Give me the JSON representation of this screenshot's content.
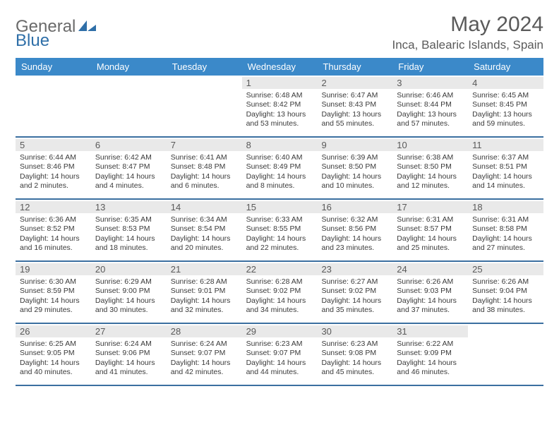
{
  "brand": {
    "word1": "General",
    "word2": "Blue"
  },
  "title": "May 2024",
  "location": "Inca, Balearic Islands, Spain",
  "colors": {
    "header_bg": "#3b89c9",
    "header_text": "#ffffff",
    "daynum_bg": "#e9e9e9",
    "week_divider": "#3b6fa0",
    "body_text": "#3a3a3a",
    "title_text": "#5a5a5a"
  },
  "day_names": [
    "Sunday",
    "Monday",
    "Tuesday",
    "Wednesday",
    "Thursday",
    "Friday",
    "Saturday"
  ],
  "weeks": [
    [
      {
        "n": "",
        "sr": "",
        "ss": "",
        "dl1": "",
        "dl2": ""
      },
      {
        "n": "",
        "sr": "",
        "ss": "",
        "dl1": "",
        "dl2": ""
      },
      {
        "n": "",
        "sr": "",
        "ss": "",
        "dl1": "",
        "dl2": ""
      },
      {
        "n": "1",
        "sr": "Sunrise: 6:48 AM",
        "ss": "Sunset: 8:42 PM",
        "dl1": "Daylight: 13 hours",
        "dl2": "and 53 minutes."
      },
      {
        "n": "2",
        "sr": "Sunrise: 6:47 AM",
        "ss": "Sunset: 8:43 PM",
        "dl1": "Daylight: 13 hours",
        "dl2": "and 55 minutes."
      },
      {
        "n": "3",
        "sr": "Sunrise: 6:46 AM",
        "ss": "Sunset: 8:44 PM",
        "dl1": "Daylight: 13 hours",
        "dl2": "and 57 minutes."
      },
      {
        "n": "4",
        "sr": "Sunrise: 6:45 AM",
        "ss": "Sunset: 8:45 PM",
        "dl1": "Daylight: 13 hours",
        "dl2": "and 59 minutes."
      }
    ],
    [
      {
        "n": "5",
        "sr": "Sunrise: 6:44 AM",
        "ss": "Sunset: 8:46 PM",
        "dl1": "Daylight: 14 hours",
        "dl2": "and 2 minutes."
      },
      {
        "n": "6",
        "sr": "Sunrise: 6:42 AM",
        "ss": "Sunset: 8:47 PM",
        "dl1": "Daylight: 14 hours",
        "dl2": "and 4 minutes."
      },
      {
        "n": "7",
        "sr": "Sunrise: 6:41 AM",
        "ss": "Sunset: 8:48 PM",
        "dl1": "Daylight: 14 hours",
        "dl2": "and 6 minutes."
      },
      {
        "n": "8",
        "sr": "Sunrise: 6:40 AM",
        "ss": "Sunset: 8:49 PM",
        "dl1": "Daylight: 14 hours",
        "dl2": "and 8 minutes."
      },
      {
        "n": "9",
        "sr": "Sunrise: 6:39 AM",
        "ss": "Sunset: 8:50 PM",
        "dl1": "Daylight: 14 hours",
        "dl2": "and 10 minutes."
      },
      {
        "n": "10",
        "sr": "Sunrise: 6:38 AM",
        "ss": "Sunset: 8:50 PM",
        "dl1": "Daylight: 14 hours",
        "dl2": "and 12 minutes."
      },
      {
        "n": "11",
        "sr": "Sunrise: 6:37 AM",
        "ss": "Sunset: 8:51 PM",
        "dl1": "Daylight: 14 hours",
        "dl2": "and 14 minutes."
      }
    ],
    [
      {
        "n": "12",
        "sr": "Sunrise: 6:36 AM",
        "ss": "Sunset: 8:52 PM",
        "dl1": "Daylight: 14 hours",
        "dl2": "and 16 minutes."
      },
      {
        "n": "13",
        "sr": "Sunrise: 6:35 AM",
        "ss": "Sunset: 8:53 PM",
        "dl1": "Daylight: 14 hours",
        "dl2": "and 18 minutes."
      },
      {
        "n": "14",
        "sr": "Sunrise: 6:34 AM",
        "ss": "Sunset: 8:54 PM",
        "dl1": "Daylight: 14 hours",
        "dl2": "and 20 minutes."
      },
      {
        "n": "15",
        "sr": "Sunrise: 6:33 AM",
        "ss": "Sunset: 8:55 PM",
        "dl1": "Daylight: 14 hours",
        "dl2": "and 22 minutes."
      },
      {
        "n": "16",
        "sr": "Sunrise: 6:32 AM",
        "ss": "Sunset: 8:56 PM",
        "dl1": "Daylight: 14 hours",
        "dl2": "and 23 minutes."
      },
      {
        "n": "17",
        "sr": "Sunrise: 6:31 AM",
        "ss": "Sunset: 8:57 PM",
        "dl1": "Daylight: 14 hours",
        "dl2": "and 25 minutes."
      },
      {
        "n": "18",
        "sr": "Sunrise: 6:31 AM",
        "ss": "Sunset: 8:58 PM",
        "dl1": "Daylight: 14 hours",
        "dl2": "and 27 minutes."
      }
    ],
    [
      {
        "n": "19",
        "sr": "Sunrise: 6:30 AM",
        "ss": "Sunset: 8:59 PM",
        "dl1": "Daylight: 14 hours",
        "dl2": "and 29 minutes."
      },
      {
        "n": "20",
        "sr": "Sunrise: 6:29 AM",
        "ss": "Sunset: 9:00 PM",
        "dl1": "Daylight: 14 hours",
        "dl2": "and 30 minutes."
      },
      {
        "n": "21",
        "sr": "Sunrise: 6:28 AM",
        "ss": "Sunset: 9:01 PM",
        "dl1": "Daylight: 14 hours",
        "dl2": "and 32 minutes."
      },
      {
        "n": "22",
        "sr": "Sunrise: 6:28 AM",
        "ss": "Sunset: 9:02 PM",
        "dl1": "Daylight: 14 hours",
        "dl2": "and 34 minutes."
      },
      {
        "n": "23",
        "sr": "Sunrise: 6:27 AM",
        "ss": "Sunset: 9:02 PM",
        "dl1": "Daylight: 14 hours",
        "dl2": "and 35 minutes."
      },
      {
        "n": "24",
        "sr": "Sunrise: 6:26 AM",
        "ss": "Sunset: 9:03 PM",
        "dl1": "Daylight: 14 hours",
        "dl2": "and 37 minutes."
      },
      {
        "n": "25",
        "sr": "Sunrise: 6:26 AM",
        "ss": "Sunset: 9:04 PM",
        "dl1": "Daylight: 14 hours",
        "dl2": "and 38 minutes."
      }
    ],
    [
      {
        "n": "26",
        "sr": "Sunrise: 6:25 AM",
        "ss": "Sunset: 9:05 PM",
        "dl1": "Daylight: 14 hours",
        "dl2": "and 40 minutes."
      },
      {
        "n": "27",
        "sr": "Sunrise: 6:24 AM",
        "ss": "Sunset: 9:06 PM",
        "dl1": "Daylight: 14 hours",
        "dl2": "and 41 minutes."
      },
      {
        "n": "28",
        "sr": "Sunrise: 6:24 AM",
        "ss": "Sunset: 9:07 PM",
        "dl1": "Daylight: 14 hours",
        "dl2": "and 42 minutes."
      },
      {
        "n": "29",
        "sr": "Sunrise: 6:23 AM",
        "ss": "Sunset: 9:07 PM",
        "dl1": "Daylight: 14 hours",
        "dl2": "and 44 minutes."
      },
      {
        "n": "30",
        "sr": "Sunrise: 6:23 AM",
        "ss": "Sunset: 9:08 PM",
        "dl1": "Daylight: 14 hours",
        "dl2": "and 45 minutes."
      },
      {
        "n": "31",
        "sr": "Sunrise: 6:22 AM",
        "ss": "Sunset: 9:09 PM",
        "dl1": "Daylight: 14 hours",
        "dl2": "and 46 minutes."
      },
      {
        "n": "",
        "sr": "",
        "ss": "",
        "dl1": "",
        "dl2": ""
      }
    ]
  ]
}
